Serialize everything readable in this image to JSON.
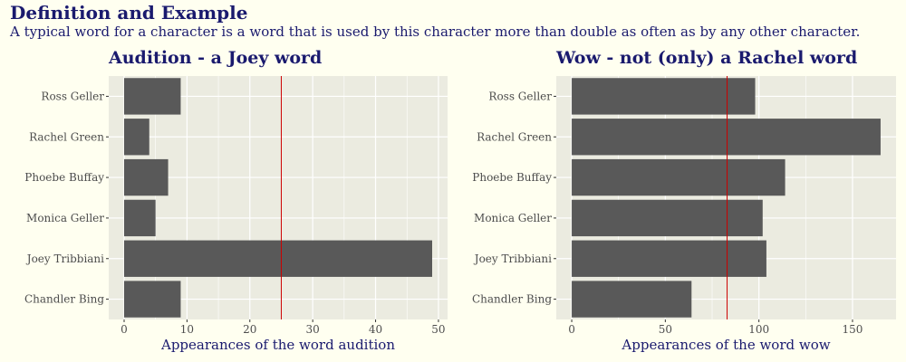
{
  "header": {
    "title": "Definition and Example",
    "subtitle": "A typical word for a character is a word that is used by this character more than double as often as by any other character."
  },
  "colors": {
    "background": "#fffff0",
    "panel_background": "#ebebe0",
    "bar": "#595959",
    "reference_line": "#cc0000",
    "title_text": "#1a1a6e"
  },
  "chart_data": [
    {
      "type": "bar",
      "orientation": "horizontal",
      "title": "Audition - a Joey word",
      "xlabel": "Appearances of the word audition",
      "ylabel": "",
      "categories": [
        "Ross Geller",
        "Rachel Green",
        "Phoebe Buffay",
        "Monica Geller",
        "Joey Tribbiani",
        "Chandler Bing"
      ],
      "values": [
        9,
        4,
        7,
        5,
        49,
        9
      ],
      "xlim": [
        -2.45,
        51.45
      ],
      "xticks": [
        0,
        10,
        20,
        30,
        40,
        50
      ],
      "reference_line": 25,
      "grid": true,
      "legend": "none"
    },
    {
      "type": "bar",
      "orientation": "horizontal",
      "title": "Wow - not (only) a Rachel word",
      "xlabel": "Appearances of the word wow",
      "ylabel": "",
      "categories": [
        "Ross Geller",
        "Rachel Green",
        "Phoebe Buffay",
        "Monica Geller",
        "Joey Tribbiani",
        "Chandler Bing"
      ],
      "values": [
        98,
        165,
        114,
        102,
        104,
        64
      ],
      "xlim": [
        -8.25,
        173.25
      ],
      "xticks": [
        0,
        50,
        100,
        150
      ],
      "reference_line": 83,
      "grid": true,
      "legend": "none"
    }
  ]
}
